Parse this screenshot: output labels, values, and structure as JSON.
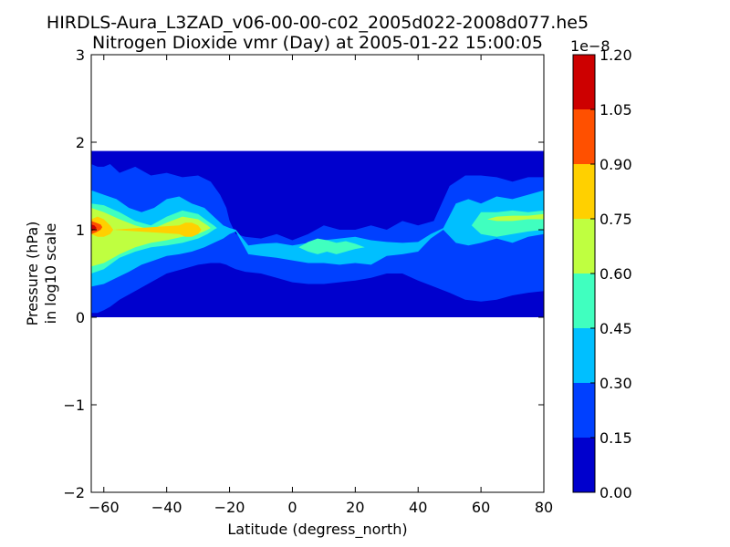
{
  "chart_data": {
    "type": "heatmap",
    "title_line1": "HIRDLS-Aura_L3ZAD_v06-00-00-c02_2005d022-2008d077.he5",
    "title_line2": "Nitrogen Dioxide vmr (Day) at 2005-01-22 15:00:05",
    "xlabel": "Latitude (degress_north)",
    "ylabel_line1": "Pressure (hPa)",
    "ylabel_line2": "in log10 scale",
    "xlim": [
      -64,
      80
    ],
    "ylim": [
      -2,
      3
    ],
    "xticks": [
      -60,
      -40,
      -20,
      0,
      20,
      40,
      60,
      80
    ],
    "xtick_labels": [
      "−60",
      "−40",
      "−20",
      "0",
      "20",
      "40",
      "60",
      "80"
    ],
    "yticks": [
      -2,
      -1,
      0,
      1,
      2,
      3
    ],
    "ytick_labels": [
      "−2",
      "−1",
      "0",
      "1",
      "2",
      "3"
    ],
    "data_extent_y": [
      0,
      1.9
    ],
    "colorbar": {
      "exponent_label": "1e−8",
      "levels": [
        0.0,
        0.15,
        0.3,
        0.45,
        0.6,
        0.75,
        0.9,
        1.05,
        1.2
      ],
      "level_labels": [
        "0.00",
        "0.15",
        "0.30",
        "0.45",
        "0.60",
        "0.75",
        "0.90",
        "1.05",
        "1.20"
      ],
      "colors": [
        "#0000cd",
        "#0040ff",
        "#00bfff",
        "#40ffbf",
        "#bfff40",
        "#ffd000",
        "#ff5000",
        "#cd0000"
      ]
    },
    "grid": false,
    "contours": [
      {
        "level": 1,
        "x": [
          -64,
          -62,
          -60,
          -58,
          -55,
          -50,
          -45,
          -40,
          -35,
          -30,
          -26,
          -23,
          -21,
          -20,
          -18,
          -15,
          -10,
          -5,
          0,
          5,
          10,
          15,
          20,
          25,
          30,
          35,
          40,
          45,
          50,
          55,
          60,
          65,
          70,
          75,
          80
        ],
        "y_low": [
          0.05,
          0.05,
          0.08,
          0.12,
          0.2,
          0.3,
          0.4,
          0.5,
          0.55,
          0.6,
          0.62,
          0.62,
          0.6,
          0.58,
          0.55,
          0.52,
          0.5,
          0.45,
          0.4,
          0.38,
          0.38,
          0.4,
          0.42,
          0.45,
          0.5,
          0.5,
          0.42,
          0.35,
          0.28,
          0.2,
          0.18,
          0.2,
          0.25,
          0.28,
          0.3
        ],
        "y_high": [
          1.75,
          1.72,
          1.72,
          1.75,
          1.65,
          1.72,
          1.62,
          1.65,
          1.6,
          1.62,
          1.55,
          1.4,
          1.25,
          1.1,
          0.95,
          0.92,
          0.9,
          0.95,
          0.88,
          0.95,
          1.05,
          1.0,
          1.0,
          1.05,
          1.0,
          1.1,
          1.05,
          1.1,
          1.5,
          1.62,
          1.62,
          1.6,
          1.55,
          1.6,
          1.6
        ]
      },
      {
        "level": 2,
        "x": [
          -64,
          -60,
          -56,
          -52,
          -48,
          -44,
          -40,
          -36,
          -32,
          -28,
          -25,
          -22,
          -20,
          -18,
          -14,
          -10,
          -5,
          0,
          5,
          10,
          15,
          20,
          25,
          30,
          35,
          40,
          44,
          48,
          52,
          56,
          60,
          65,
          70,
          75,
          80
        ],
        "y_low": [
          0.35,
          0.38,
          0.45,
          0.52,
          0.6,
          0.65,
          0.7,
          0.72,
          0.75,
          0.8,
          0.85,
          0.9,
          0.95,
          0.98,
          0.72,
          0.7,
          0.68,
          0.65,
          0.62,
          0.62,
          0.6,
          0.62,
          0.6,
          0.7,
          0.72,
          0.75,
          0.9,
          1.0,
          0.85,
          0.82,
          0.85,
          0.9,
          0.85,
          0.92,
          0.95
        ],
        "y_high": [
          1.45,
          1.4,
          1.35,
          1.25,
          1.2,
          1.25,
          1.35,
          1.38,
          1.3,
          1.25,
          1.15,
          1.05,
          1.02,
          1.0,
          0.82,
          0.84,
          0.85,
          0.82,
          0.85,
          0.88,
          0.9,
          0.92,
          0.88,
          0.86,
          0.85,
          0.86,
          0.95,
          1.02,
          1.3,
          1.35,
          1.3,
          1.38,
          1.35,
          1.4,
          1.45
        ]
      },
      {
        "level": 3,
        "x": [
          -64,
          -60,
          -55,
          -50,
          -45,
          -40,
          -35,
          -30,
          -27,
          -25,
          -24,
          2,
          5,
          8,
          11,
          14,
          17,
          20,
          23,
          57,
          60,
          65,
          70,
          75,
          80
        ],
        "y_low": [
          0.5,
          0.55,
          0.68,
          0.75,
          0.8,
          0.82,
          0.85,
          0.9,
          0.95,
          1.0,
          1.02,
          0.8,
          0.75,
          0.72,
          0.75,
          0.72,
          0.75,
          0.78,
          0.8,
          1.05,
          0.95,
          0.92,
          0.95,
          0.98,
          1.0
        ],
        "y_high": [
          1.3,
          1.28,
          1.2,
          1.1,
          1.05,
          1.15,
          1.22,
          1.18,
          1.1,
          1.05,
          1.02,
          0.8,
          0.86,
          0.9,
          0.88,
          0.85,
          0.87,
          0.84,
          0.8,
          1.05,
          1.2,
          1.2,
          1.22,
          1.2,
          1.22
        ]
      },
      {
        "level": 4,
        "x": [
          -64,
          -60,
          -55,
          -50,
          -45,
          -40,
          -35,
          -30,
          -27,
          -26,
          62,
          65,
          70,
          75,
          80
        ],
        "y_low": [
          0.58,
          0.62,
          0.72,
          0.8,
          0.85,
          0.88,
          0.92,
          0.95,
          1.0,
          1.02,
          1.12,
          1.1,
          1.1,
          1.12,
          1.12
        ],
        "y_high": [
          1.25,
          1.2,
          1.12,
          1.05,
          1.0,
          1.08,
          1.15,
          1.12,
          1.05,
          1.02,
          1.12,
          1.15,
          1.16,
          1.16,
          1.18
        ]
      },
      {
        "level": 5,
        "x": [
          -64,
          -62,
          -60,
          -58,
          -57,
          -36,
          -34,
          -32,
          -30,
          -29
        ],
        "y_low": [
          0.95,
          0.92,
          0.92,
          0.95,
          1.0,
          0.95,
          0.92,
          0.92,
          0.95,
          1.0
        ],
        "y_high": [
          1.12,
          1.15,
          1.12,
          1.05,
          1.0,
          1.05,
          1.08,
          1.08,
          1.05,
          1.0
        ]
      },
      {
        "level": 6,
        "x": [
          -64,
          -62.5,
          -61,
          -60.5
        ],
        "y_low": [
          0.95,
          0.97,
          1.0,
          1.03
        ],
        "y_high": [
          1.1,
          1.08,
          1.06,
          1.03
        ]
      },
      {
        "level": 7,
        "x": [
          -64,
          -63,
          -62.3
        ],
        "y_low": [
          0.98,
          1.0,
          1.02
        ],
        "y_high": [
          1.06,
          1.05,
          1.02
        ]
      }
    ]
  }
}
